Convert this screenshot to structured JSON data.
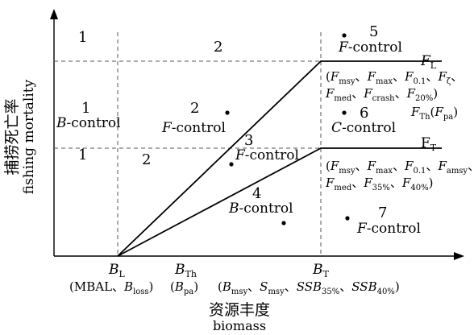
{
  "axes": {
    "y_label_zh": "捕捞死亡率",
    "y_label_en": "fishing mortality",
    "x_label_zh": "资源丰度",
    "x_label_en": "biomass"
  },
  "regions": {
    "r1a": "1",
    "r2a": "2",
    "r1b_num": "1",
    "r1b_text": "B-control",
    "r1c": "1",
    "r2c": "2",
    "r2b_num": "2",
    "r2b_text": "F-control",
    "r3_num": "3",
    "r3_text": "F-control",
    "r4_num": "4",
    "r4_text": "B-control",
    "r5_num": "5",
    "r5_text": "F-control",
    "r6_num": "6",
    "r6_text": "C-control",
    "r7_num": "7",
    "r7_text": "F-control"
  },
  "reference_lines": {
    "fl_label": "F_L",
    "fl_desc_line1": "(F_msy、F_max、F_0.1、F_ζ、",
    "fl_desc_line2": "F_med、F_crash、F_20%)",
    "fth_label": "F_Th(F_pa)",
    "ft_label": "F_T",
    "ft_desc_line1": "(F_msy、F_max、F_0.1、F_amsy、",
    "ft_desc_line2": "F_med、F_35%、F_40%)"
  },
  "x_markers": {
    "bl_label": "B_L",
    "bl_desc": "(MBAL、B_loss)",
    "bth_label": "B_Th",
    "bth_desc": "(B_pa)",
    "bt_label": "B_T",
    "bt_desc": "(B_msy、S_msy、SSB_35%、SSB_40%)"
  }
}
